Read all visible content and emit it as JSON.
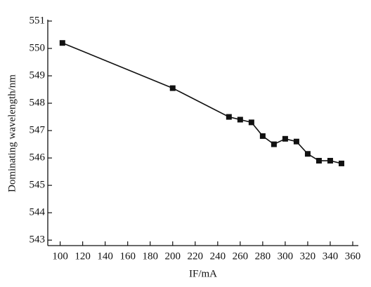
{
  "chart_data": {
    "type": "line",
    "x_label": "IF/mA",
    "y_label": "Dominating wavelength/nm",
    "x": [
      102,
      200,
      250,
      260,
      270,
      280,
      290,
      300,
      310,
      320,
      330,
      340,
      350
    ],
    "series": [
      {
        "color": "#111111",
        "values": [
          550.2,
          548.55,
          547.5,
          547.4,
          547.3,
          546.8,
          546.5,
          546.7,
          546.6,
          546.15,
          545.9,
          545.9,
          545.8
        ]
      }
    ],
    "xlim": [
      89,
      365
    ],
    "ylim": [
      542.8,
      551
    ],
    "xticks": [
      100,
      120,
      140,
      160,
      180,
      200,
      220,
      240,
      260,
      280,
      300,
      320,
      340,
      360
    ],
    "yticks": [
      543,
      544,
      545,
      546,
      547,
      548,
      549,
      550,
      551
    ],
    "marker": "square"
  }
}
